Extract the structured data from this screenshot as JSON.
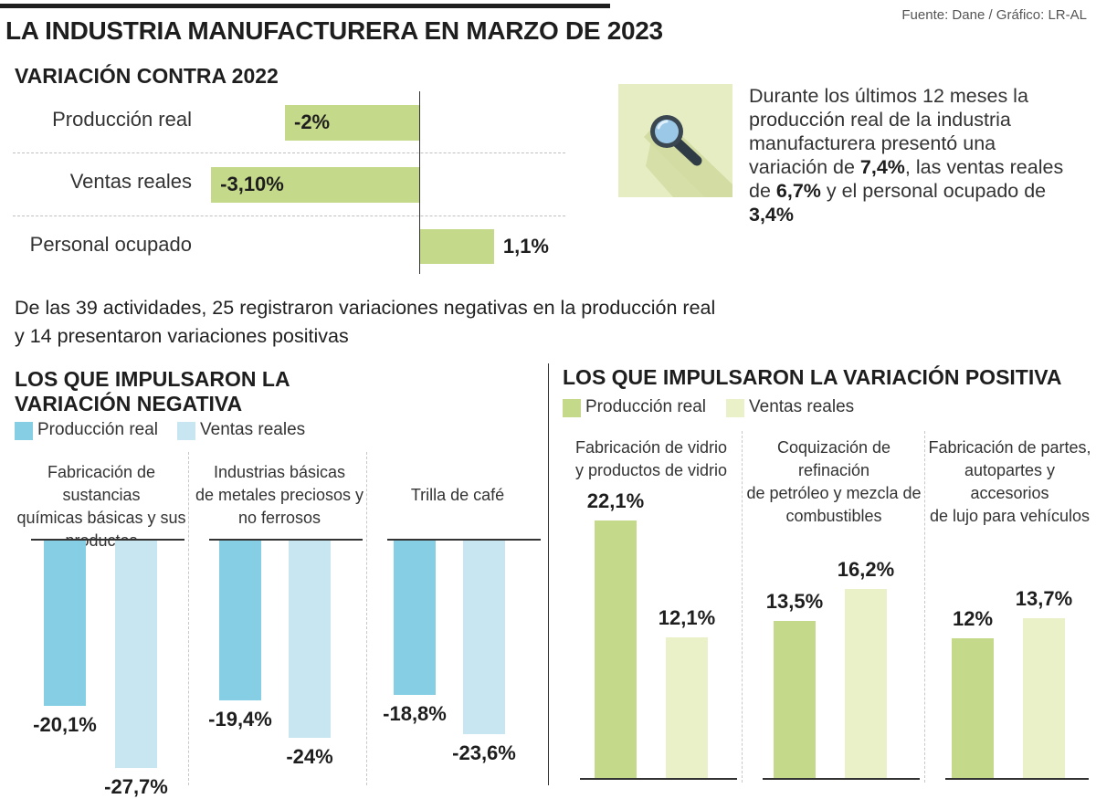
{
  "header": {
    "title": "LA INDUSTRIA MANUFACTURERA EN MARZO DE 2023",
    "source": "Fuente: Dane / Gráfico: LR-AL"
  },
  "variation": {
    "title": "VARIACIÓN CONTRA 2022",
    "items": [
      {
        "label": "Producción real",
        "value": -2,
        "display": "-2%"
      },
      {
        "label": "Ventas reales",
        "value": -3.1,
        "display": "-3,10%"
      },
      {
        "label": "Personal ocupado",
        "value": 1.1,
        "display": "1,1%"
      }
    ]
  },
  "info": {
    "icon": "magnifier-icon",
    "text_parts": [
      "Durante los últimos 12 meses la producción real de la industria manufacturera presentó una variación de ",
      "7,4%",
      ", las ventas reales de ",
      "6,7%",
      " y el personal ocupado de ",
      "3,4%"
    ]
  },
  "description": {
    "line1": "De las 39 actividades, 25 registraron variaciones negativas en la producción real",
    "line2": "y 14 presentaron variaciones positivas"
  },
  "negative": {
    "title_line1": "LOS QUE IMPULSARON LA",
    "title_line2": "VARIACIÓN NEGATIVA",
    "legend": [
      {
        "label": "Producción real",
        "color": "#85cee4"
      },
      {
        "label": "Ventas reales",
        "color": "#c8e6f2"
      }
    ],
    "panels": [
      {
        "lines": [
          "Fabricación de sustancias",
          "químicas básicas y sus",
          "productos"
        ],
        "values": [
          -20.1,
          -27.7
        ],
        "labels": [
          "-20,1%",
          "-27,7%"
        ]
      },
      {
        "lines": [
          "Industrias básicas",
          "de metales preciosos y",
          "no ferrosos"
        ],
        "values": [
          -19.4,
          -24
        ],
        "labels": [
          "-19,4%",
          "-24%"
        ]
      },
      {
        "lines": [
          "Trilla de café"
        ],
        "values": [
          -18.8,
          -23.6
        ],
        "labels": [
          "-18,8%",
          "-23,6%"
        ]
      }
    ]
  },
  "positive": {
    "title": "LOS QUE IMPULSARON LA VARIACIÓN POSITIVA",
    "legend": [
      {
        "label": "Producción real",
        "color": "#c5d98a"
      },
      {
        "label": "Ventas reales",
        "color": "#eaf0c8"
      }
    ],
    "panels": [
      {
        "lines": [
          "Fabricación de vidrio",
          "y productos de vidrio"
        ],
        "values": [
          22.1,
          12.1
        ],
        "labels": [
          "22,1%",
          "12,1%"
        ]
      },
      {
        "lines": [
          "Coquización de refinación",
          "de petróleo y mezcla de",
          "combustibles"
        ],
        "values": [
          13.5,
          16.2
        ],
        "labels": [
          "13,5%",
          "16,2%"
        ]
      },
      {
        "lines": [
          "Fabricación de partes,",
          "autopartes y accesorios",
          "de lujo para vehículos"
        ],
        "values": [
          12,
          13.7
        ],
        "labels": [
          "12%",
          "13,7%"
        ]
      }
    ]
  },
  "chart_data": [
    {
      "type": "bar",
      "title": "VARIACIÓN CONTRA 2022",
      "categories": [
        "Producción real",
        "Ventas reales",
        "Personal ocupado"
      ],
      "values": [
        -2,
        -3.1,
        1.1
      ],
      "unit": "%",
      "color": "#c5d98a"
    },
    {
      "type": "bar",
      "title": "LOS QUE IMPULSARON LA VARIACIÓN NEGATIVA",
      "categories": [
        "Fabricación de sustancias químicas básicas y sus productos",
        "Industrias básicas de metales preciosos y no ferrosos",
        "Trilla de café"
      ],
      "series": [
        {
          "name": "Producción real",
          "values": [
            -20.1,
            -19.4,
            -18.8
          ]
        },
        {
          "name": "Ventas reales",
          "values": [
            -27.7,
            -24,
            -23.6
          ]
        }
      ],
      "unit": "%"
    },
    {
      "type": "bar",
      "title": "LOS QUE IMPULSARON LA VARIACIÓN POSITIVA",
      "categories": [
        "Fabricación de vidrio y productos de vidrio",
        "Coquización de refinación de petróleo y mezcla de combustibles",
        "Fabricación de partes, autopartes y accesorios de lujo para vehículos"
      ],
      "series": [
        {
          "name": "Producción real",
          "values": [
            22.1,
            13.5,
            12
          ]
        },
        {
          "name": "Ventas reales",
          "values": [
            12.1,
            16.2,
            13.7
          ]
        }
      ],
      "unit": "%"
    }
  ]
}
